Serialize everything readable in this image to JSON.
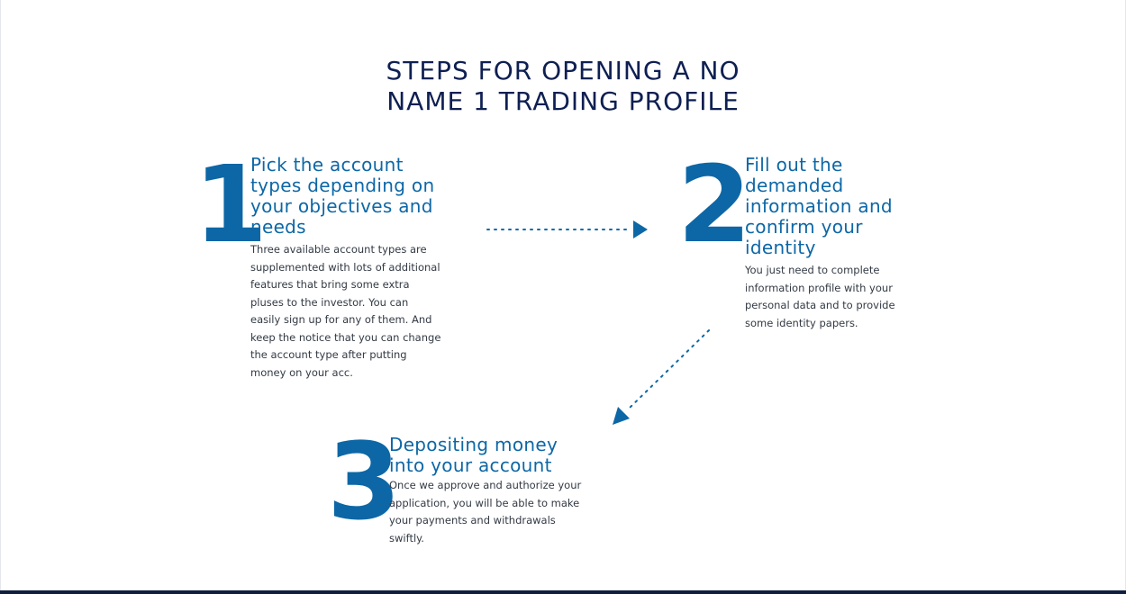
{
  "page": {
    "title_line1": "STEPS FOR OPENING A NO",
    "title_line2": "NAME 1 TRADING PROFILE"
  },
  "steps": [
    {
      "number": "1",
      "heading": "Pick the account types depending on your objectives and needs",
      "text": "Three available account types are supplemented with lots of additional features that bring some extra pluses to the investor. You can easily sign up for any of them. And keep the notice that you can change the account type after putting money on your acc."
    },
    {
      "number": "2",
      "heading": "Fill out the demanded information and confirm your identity",
      "text": "You just need to complete information profile with your personal data and to provide some identity papers."
    },
    {
      "number": "3",
      "heading": "Depositing money into your account",
      "text": "Once we approve and authorize your application, you will be able to make your payments and withdrawals swiftly."
    }
  ],
  "colors": {
    "title": "#0e1f52",
    "accent": "#0d67a6",
    "body_text": "#333a44",
    "footer_bar": "#0f1e3f"
  },
  "icons": {
    "arrow_1_to_2": "dotted-arrow-right-icon",
    "arrow_2_to_3": "dotted-arrow-down-left-icon"
  }
}
